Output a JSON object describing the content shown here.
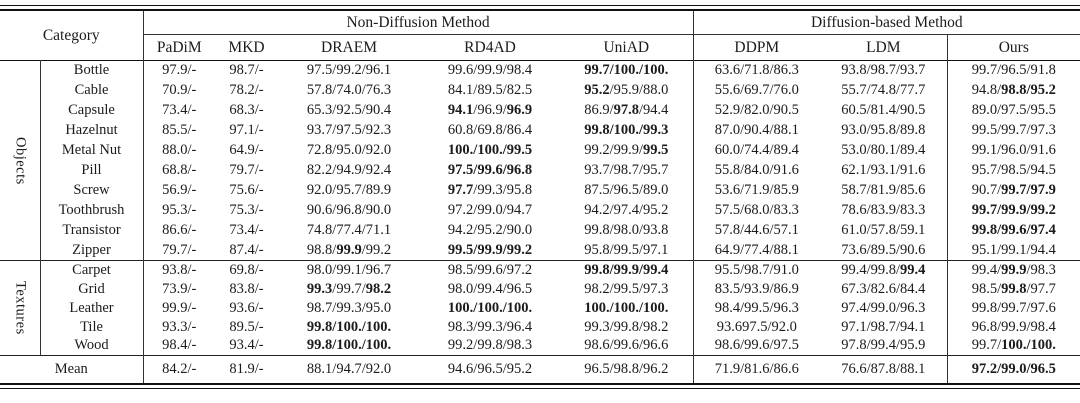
{
  "table": {
    "header": {
      "category_label": "Category",
      "groups": [
        {
          "label": "Non-Diffusion Method",
          "methods": [
            "PaDiM",
            "MKD",
            "DRAEM",
            "RD4AD",
            "UniAD"
          ]
        },
        {
          "label": "Diffusion-based Method",
          "methods": [
            "DDPM",
            "LDM",
            "Ours"
          ]
        }
      ]
    },
    "sections": [
      {
        "group": "Objects",
        "rows": [
          {
            "category": "Bottle",
            "values": [
              "97.9/-",
              "98.7/-",
              "97.5/99.2/96.1",
              "99.6/99.9/98.4",
              "**99.7/100./100.**",
              "63.6/71.8/86.3",
              "93.8/98.7/93.7",
              "99.7/96.5/91.8"
            ]
          },
          {
            "category": "Cable",
            "values": [
              "70.9/-",
              "78.2/-",
              "57.8/74.0/76.3",
              "84.1/89.5/82.5",
              "**95.2**/95.9/88.0",
              "55.6/69.7/76.0",
              "55.7/74.8/77.7",
              "94.8/**98.8/95.2**"
            ]
          },
          {
            "category": "Capsule",
            "values": [
              "73.4/-",
              "68.3/-",
              "65.3/92.5/90.4",
              "**94.1**/96.9/**96.9**",
              "86.9/**97.8**/94.4",
              "52.9/82.0/90.5",
              "60.5/81.4/90.5",
              "89.0/97.5/95.5"
            ]
          },
          {
            "category": "Hazelnut",
            "values": [
              "85.5/-",
              "97.1/-",
              "93.7/97.5/92.3",
              "60.8/69.8/86.4",
              "**99.8/100./99.3**",
              "87.0/90.4/88.1",
              "93.0/95.8/89.8",
              "99.5/99.7/97.3"
            ]
          },
          {
            "category": "Metal Nut",
            "values": [
              "88.0/-",
              "64.9/-",
              "72.8/95.0/92.0",
              "**100./100./99.5**",
              "99.2/99.9/**99.5**",
              "60.0/74.4/89.4",
              "53.0/80.1/89.4",
              "99.1/96.0/91.6"
            ]
          },
          {
            "category": "Pill",
            "values": [
              "68.8/-",
              "79.7/-",
              "82.2/94.9/92.4",
              "**97.5/99.6/96.8**",
              "93.7/98.7/95.7",
              "55.8/84.0/91.6",
              "62.1/93.1/91.6",
              "95.7/98.5/94.5"
            ]
          },
          {
            "category": "Screw",
            "values": [
              "56.9/-",
              "75.6/-",
              "92.0/95.7/89.9",
              "**97.7**/99.3/95.8",
              "87.5/96.5/89.0",
              "53.6/71.9/85.9",
              "58.7/81.9/85.6",
              "90.7/**99.7/97.9**"
            ]
          },
          {
            "category": "Toothbrush",
            "values": [
              "95.3/-",
              "75.3/-",
              "90.6/96.8/90.0",
              "97.2/99.0/94.7",
              "94.2/97.4/95.2",
              "57.5/68.0/83.3",
              "78.6/83.9/83.3",
              "**99.7/99.9/99.2**"
            ]
          },
          {
            "category": "Transistor",
            "values": [
              "86.6/-",
              "73.4/-",
              "74.8/77.4/71.1",
              "94.2/95.2/90.0",
              "99.8/98.0/93.8",
              "57.8/44.6/57.1",
              "61.0/57.8/59.1",
              "**99.8/99.6/97.4**"
            ]
          },
          {
            "category": "Zipper",
            "values": [
              "79.7/-",
              "87.4/-",
              "98.8/**99.9**/99.2",
              "**99.5/99.9/99.2**",
              "95.8/99.5/97.1",
              "64.9/77.4/88.1",
              "73.6/89.5/90.6",
              "95.1/99.1/94.4"
            ]
          }
        ]
      },
      {
        "group": "Textures",
        "rows": [
          {
            "category": "Carpet",
            "values": [
              "93.8/-",
              "69.8/-",
              "98.0/99.1/96.7",
              "98.5/99.6/97.2",
              "**99.8/99.9/99.4**",
              "95.5/98.7/91.0",
              "99.4/99.8/**99.4**",
              "99.4/**99.9**/98.3"
            ]
          },
          {
            "category": "Grid",
            "values": [
              "73.9/-",
              "83.8/-",
              "**99.3**/99.7/**98.2**",
              "98.0/99.4/96.5",
              "98.2/99.5/97.3",
              "83.5/93.9/86.9",
              "67.3/82.6/84.4",
              "98.5/**99.8**/97.7"
            ]
          },
          {
            "category": "Leather",
            "values": [
              "99.9/-",
              "93.6/-",
              "98.7/99.3/95.0",
              "**100./100./100.**",
              "**100./100./100.**",
              "98.4/99.5/96.3",
              "97.4/99.0/96.3",
              "99.8/99.7/97.6"
            ]
          },
          {
            "category": "Tile",
            "values": [
              "93.3/-",
              "89.5/-",
              "**99.8/100./100.**",
              "98.3/99.3/96.4",
              "99.3/99.8/98.2",
              "93.697.5/92.0",
              "97.1/98.7/94.1",
              "96.8/99.9/98.4"
            ]
          },
          {
            "category": "Wood",
            "values": [
              "98.4/-",
              "93.4/-",
              "**99.8/100./100.**",
              "99.2/99.8/98.3",
              "98.6/99.6/96.6",
              "98.6/99.6/97.5",
              "97.8/99.4/95.9",
              "99.7/**100./100.**"
            ]
          }
        ]
      }
    ],
    "mean": {
      "label": "Mean",
      "values": [
        "84.2/-",
        "81.9/-",
        "88.1/94.7/92.0",
        "94.6/96.5/95.2",
        "96.5/98.8/96.2",
        "71.9/81.6/86.6",
        "76.6/87.8/88.1",
        "**97.2/99.0/96.5**"
      ]
    }
  }
}
